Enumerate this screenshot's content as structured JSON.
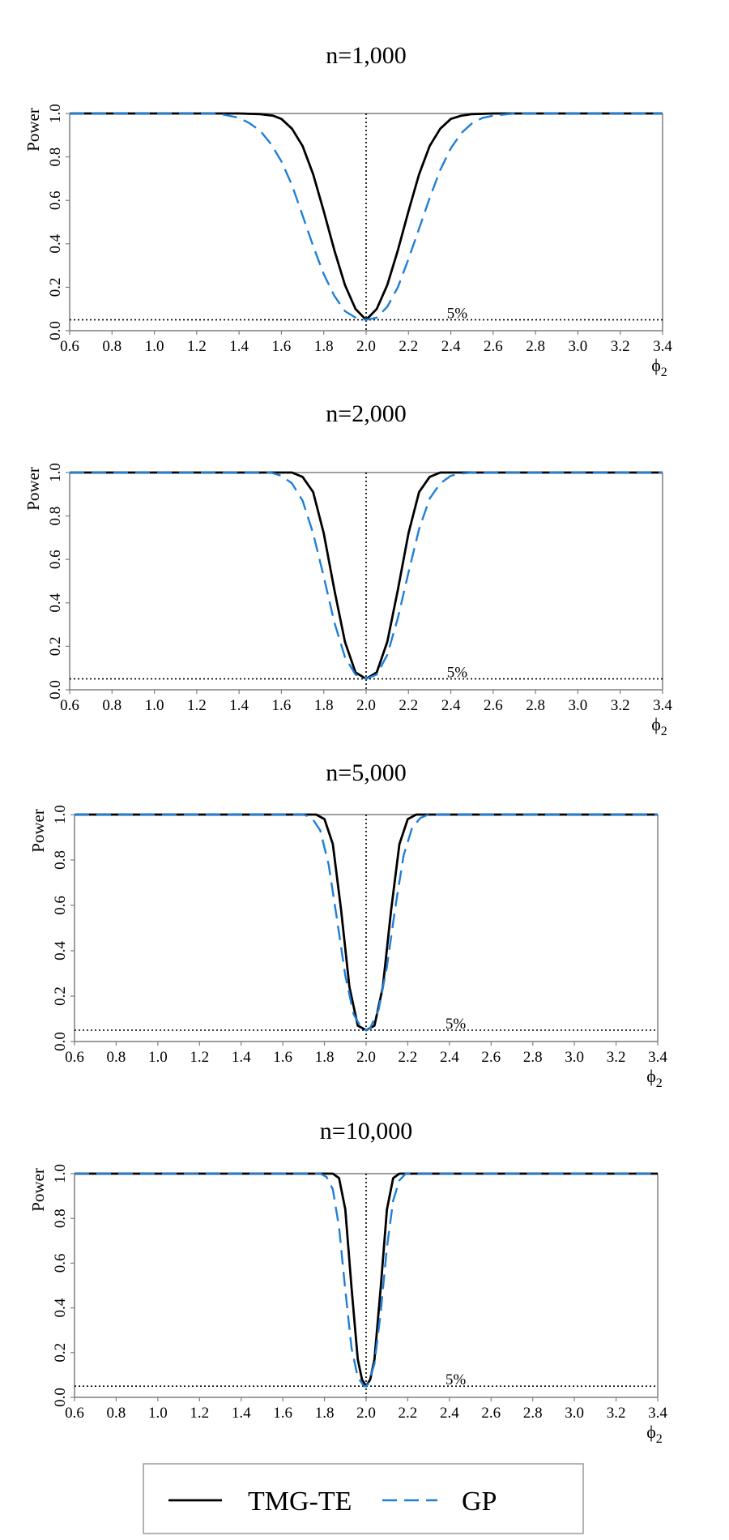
{
  "colors": {
    "tmg": "#000000",
    "gp": "#1f7fd6",
    "frame": "#7f7f7f"
  },
  "legend": {
    "items": [
      {
        "label": "TMG-TE",
        "style": "solid"
      },
      {
        "label": "GP",
        "style": "dashed"
      }
    ]
  },
  "chart_data": [
    {
      "type": "line",
      "title": "n=1,000",
      "xlabel": "ϕ2",
      "ylabel": "Power",
      "xlim": [
        0.6,
        3.4
      ],
      "ylim": [
        0.0,
        1.0
      ],
      "xticks": [
        "0.6",
        "0.8",
        "1.0",
        "1.2",
        "1.4",
        "1.6",
        "1.8",
        "2.0",
        "2.2",
        "2.4",
        "2.6",
        "2.8",
        "3.0",
        "3.2",
        "3.4"
      ],
      "yticks": [
        "0.0",
        "0.2",
        "0.4",
        "0.6",
        "0.8",
        "1.0"
      ],
      "reference_x": 2.0,
      "reference_y": 0.05,
      "reference_label": "5%",
      "series": [
        {
          "name": "TMG-TE",
          "x": [
            0.6,
            1.4,
            1.5,
            1.56,
            1.6,
            1.65,
            1.7,
            1.75,
            1.8,
            1.85,
            1.9,
            1.95,
            2.0,
            2.05,
            2.1,
            2.15,
            2.2,
            2.25,
            2.3,
            2.35,
            2.4,
            2.45,
            2.5,
            2.6,
            3.4
          ],
          "values": [
            1.0,
            1.0,
            0.997,
            0.99,
            0.975,
            0.93,
            0.85,
            0.72,
            0.55,
            0.37,
            0.21,
            0.1,
            0.05,
            0.1,
            0.21,
            0.37,
            0.55,
            0.72,
            0.85,
            0.93,
            0.975,
            0.99,
            0.997,
            1.0,
            1.0
          ]
        },
        {
          "name": "GP",
          "x": [
            0.6,
            1.3,
            1.4,
            1.45,
            1.5,
            1.55,
            1.6,
            1.65,
            1.7,
            1.75,
            1.8,
            1.85,
            1.9,
            1.95,
            2.0,
            2.05,
            2.1,
            2.15,
            2.2,
            2.25,
            2.3,
            2.35,
            2.4,
            2.45,
            2.5,
            2.55,
            2.6,
            2.7,
            3.4
          ],
          "values": [
            1.0,
            1.0,
            0.98,
            0.955,
            0.92,
            0.86,
            0.78,
            0.67,
            0.53,
            0.39,
            0.26,
            0.16,
            0.09,
            0.06,
            0.05,
            0.06,
            0.11,
            0.2,
            0.33,
            0.47,
            0.61,
            0.74,
            0.84,
            0.91,
            0.955,
            0.98,
            0.99,
            1.0,
            1.0
          ]
        }
      ]
    },
    {
      "type": "line",
      "title": "n=2,000",
      "xlabel": "ϕ2",
      "ylabel": "Power",
      "xlim": [
        0.6,
        3.4
      ],
      "ylim": [
        0.0,
        1.0
      ],
      "xticks": [
        "0.6",
        "0.8",
        "1.0",
        "1.2",
        "1.4",
        "1.6",
        "1.8",
        "2.0",
        "2.2",
        "2.4",
        "2.6",
        "2.8",
        "3.0",
        "3.2",
        "3.4"
      ],
      "yticks": [
        "0.0",
        "0.2",
        "0.4",
        "0.6",
        "0.8",
        "1.0"
      ],
      "reference_x": 2.0,
      "reference_y": 0.05,
      "reference_label": "5%",
      "series": [
        {
          "name": "TMG-TE",
          "x": [
            0.6,
            1.65,
            1.7,
            1.75,
            1.8,
            1.85,
            1.9,
            1.95,
            2.0,
            2.05,
            2.1,
            2.15,
            2.2,
            2.25,
            2.3,
            2.35,
            3.4
          ],
          "values": [
            1.0,
            1.0,
            0.98,
            0.91,
            0.72,
            0.46,
            0.22,
            0.08,
            0.05,
            0.08,
            0.22,
            0.46,
            0.72,
            0.91,
            0.98,
            1.0,
            1.0
          ]
        },
        {
          "name": "GP",
          "x": [
            0.6,
            1.55,
            1.6,
            1.65,
            1.7,
            1.75,
            1.8,
            1.85,
            1.9,
            1.95,
            2.0,
            2.05,
            2.1,
            2.15,
            2.2,
            2.25,
            2.3,
            2.35,
            2.4,
            2.45,
            2.5,
            3.4
          ],
          "values": [
            1.0,
            1.0,
            0.985,
            0.95,
            0.87,
            0.72,
            0.52,
            0.31,
            0.15,
            0.07,
            0.05,
            0.07,
            0.16,
            0.33,
            0.54,
            0.74,
            0.88,
            0.95,
            0.985,
            0.995,
            1.0,
            1.0
          ]
        }
      ]
    },
    {
      "type": "line",
      "title": "n=5,000",
      "xlabel": "ϕ2",
      "ylabel": "Power",
      "xlim": [
        0.6,
        3.4
      ],
      "ylim": [
        0.0,
        1.0
      ],
      "xticks": [
        "0.6",
        "0.8",
        "1.0",
        "1.2",
        "1.4",
        "1.6",
        "1.8",
        "2.0",
        "2.2",
        "2.4",
        "2.6",
        "2.8",
        "3.0",
        "3.2",
        "3.4"
      ],
      "yticks": [
        "0.0",
        "0.2",
        "0.4",
        "0.6",
        "0.8",
        "1.0"
      ],
      "reference_x": 2.0,
      "reference_y": 0.05,
      "reference_label": "5%",
      "series": [
        {
          "name": "TMG-TE",
          "x": [
            0.6,
            1.76,
            1.8,
            1.84,
            1.88,
            1.92,
            1.96,
            2.0,
            2.04,
            2.08,
            2.12,
            2.16,
            2.2,
            2.24,
            3.4
          ],
          "values": [
            1.0,
            1.0,
            0.98,
            0.87,
            0.58,
            0.24,
            0.07,
            0.05,
            0.07,
            0.24,
            0.58,
            0.87,
            0.98,
            1.0,
            1.0
          ]
        },
        {
          "name": "GP",
          "x": [
            0.6,
            1.7,
            1.74,
            1.78,
            1.82,
            1.86,
            1.9,
            1.94,
            1.98,
            2.0,
            2.02,
            2.06,
            2.1,
            2.14,
            2.18,
            2.22,
            2.26,
            2.3,
            3.4
          ],
          "values": [
            1.0,
            1.0,
            0.985,
            0.93,
            0.78,
            0.54,
            0.29,
            0.12,
            0.055,
            0.05,
            0.06,
            0.14,
            0.33,
            0.59,
            0.82,
            0.94,
            0.985,
            1.0,
            1.0
          ]
        }
      ]
    },
    {
      "type": "line",
      "title": "n=10,000",
      "xlabel": "ϕ2",
      "ylabel": "Power",
      "xlim": [
        0.6,
        3.4
      ],
      "ylim": [
        0.0,
        1.0
      ],
      "xticks": [
        "0.6",
        "0.8",
        "1.0",
        "1.2",
        "1.4",
        "1.6",
        "1.8",
        "2.0",
        "2.2",
        "2.4",
        "2.6",
        "2.8",
        "3.0",
        "3.2",
        "3.4"
      ],
      "yticks": [
        "0.0",
        "0.2",
        "0.4",
        "0.6",
        "0.8",
        "1.0"
      ],
      "reference_x": 2.0,
      "reference_y": 0.05,
      "reference_label": "5%",
      "series": [
        {
          "name": "TMG-TE",
          "x": [
            0.6,
            1.84,
            1.87,
            1.9,
            1.93,
            1.96,
            1.98,
            2.0,
            2.02,
            2.04,
            2.07,
            2.1,
            2.13,
            2.16,
            3.4
          ],
          "values": [
            1.0,
            1.0,
            0.98,
            0.84,
            0.49,
            0.17,
            0.08,
            0.05,
            0.08,
            0.17,
            0.49,
            0.84,
            0.98,
            1.0,
            1.0
          ]
        },
        {
          "name": "GP",
          "x": [
            0.6,
            1.78,
            1.81,
            1.84,
            1.87,
            1.9,
            1.93,
            1.96,
            1.99,
            2.0,
            2.01,
            2.04,
            2.07,
            2.1,
            2.13,
            2.16,
            2.19,
            3.4
          ],
          "values": [
            1.0,
            1.0,
            0.985,
            0.93,
            0.76,
            0.48,
            0.22,
            0.09,
            0.05,
            0.05,
            0.06,
            0.15,
            0.38,
            0.67,
            0.88,
            0.97,
            1.0,
            1.0
          ]
        }
      ]
    }
  ]
}
